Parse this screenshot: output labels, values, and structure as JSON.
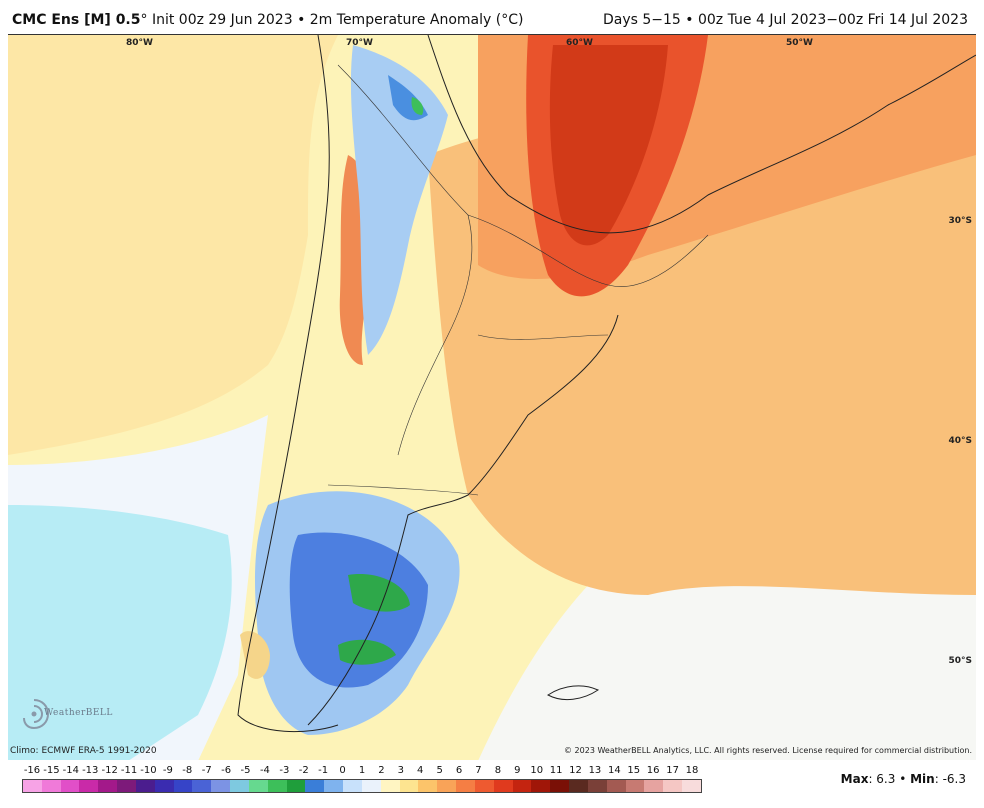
{
  "header": {
    "model": "CMC Ens [M] 0.5",
    "degree": "°",
    "init_text": "Init 00z 29 Jun 2023 • 2m Temperature Anomaly (°C)",
    "period_text": "Days 5−15 • 00z Tue 4 Jul 2023−00z Fri 14 Jul 2023"
  },
  "map": {
    "longitude_labels": [
      "80°W",
      "70°W",
      "60°W",
      "50°W"
    ],
    "latitude_labels": [
      "30°S",
      "40°S",
      "50°S"
    ]
  },
  "footer": {
    "climo": "Climo: ECMWF ERA-5 1991-2020",
    "copyright": "© 2023 WeatherBELL Analytics, LLC. All rights reserved. License required for commercial distribution.",
    "logo_text": "WeatherBELL"
  },
  "scale": {
    "ticks": [
      "-16",
      "-15",
      "-14",
      "-13",
      "-12",
      "-11",
      "-10",
      "-9",
      "-8",
      "-7",
      "-6",
      "-5",
      "-4",
      "-3",
      "-2",
      "-1",
      "0",
      "1",
      "2",
      "3",
      "4",
      "5",
      "6",
      "7",
      "8",
      "9",
      "10",
      "11",
      "12",
      "13",
      "14",
      "15",
      "16",
      "17",
      "18"
    ],
    "colors": [
      "#f7a3e6",
      "#f07ad9",
      "#e14fc8",
      "#c92aa8",
      "#a3198a",
      "#7d1a7a",
      "#4b1d8e",
      "#3a2cb0",
      "#3644c8",
      "#4a63d6",
      "#7c93e4",
      "#7ec9e0",
      "#66d98f",
      "#3dbf5a",
      "#1f9e3b",
      "#3a7ed8",
      "#7fb3ee",
      "#c8e1fb",
      "#eaf2fb",
      "#fff5c2",
      "#fde490",
      "#fcc46a",
      "#f9a358",
      "#f57e44",
      "#ee5a30",
      "#e03a1e",
      "#c42410",
      "#a01608",
      "#7a1006",
      "#5a2a20",
      "#7a4038",
      "#a35a52",
      "#c77a72",
      "#e6a3a0",
      "#f5c7c4",
      "#f8dcdc"
    ],
    "max_label": "Max",
    "max_value": "6.3",
    "min_label": "Min",
    "min_value": "-6.3"
  }
}
